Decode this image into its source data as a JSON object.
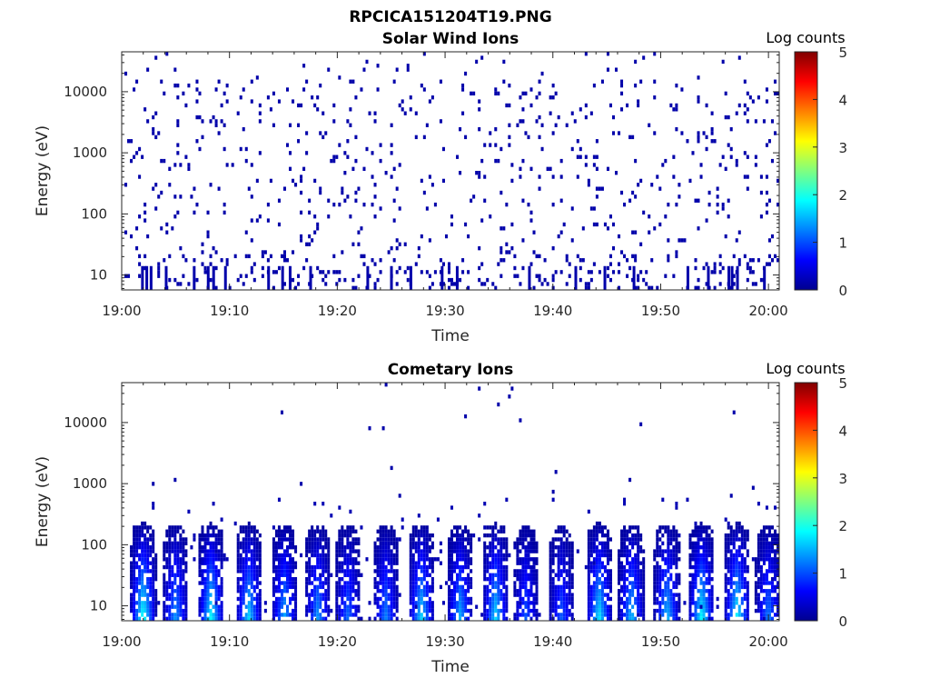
{
  "figure_title": "RPCICA151204T19.PNG",
  "chart_data": [
    {
      "type": "heatmap",
      "title": "Solar Wind Ions",
      "xlabel": "Time",
      "ylabel": "Energy (eV)",
      "x_tick_labels": [
        "19:00",
        "19:10",
        "19:20",
        "19:30",
        "19:40",
        "19:50",
        "20:00"
      ],
      "y_tick_labels": [
        "10",
        "100",
        "1000",
        "10000"
      ],
      "y_scale": "log",
      "ylim_eV": [
        5.7,
        45000
      ],
      "xlim_minutes": [
        0,
        61
      ],
      "colorbar": {
        "label": "Log counts",
        "ticks": [
          "0",
          "1",
          "2",
          "3",
          "4",
          "5"
        ],
        "range": [
          0,
          5
        ],
        "colormap": "jet"
      },
      "description_of_values": "sparse scattered counts mostly log value ~0 (dark blue) across 10 eV to 20 keV",
      "low_energy_bursts_minutes": [
        1.8,
        2.2,
        2.6,
        4.0,
        6.6,
        7.9,
        8.4,
        9.5,
        13.5,
        14.8,
        15.5,
        17.4,
        22.7,
        24.9,
        26.7,
        29.6,
        31.0,
        37.7,
        42.0,
        44.7,
        47.4,
        52.4,
        54.3,
        56.2,
        56.5,
        57.0,
        59.5
      ]
    },
    {
      "type": "heatmap",
      "title": "Cometary Ions",
      "xlabel": "Time",
      "ylabel": "Energy (eV)",
      "x_tick_labels": [
        "19:00",
        "19:10",
        "19:20",
        "19:30",
        "19:40",
        "19:50",
        "20:00"
      ],
      "y_tick_labels": [
        "10",
        "100",
        "1000",
        "10000"
      ],
      "y_scale": "log",
      "ylim_eV": [
        5.7,
        45000
      ],
      "xlim_minutes": [
        0,
        61
      ],
      "colorbar": {
        "label": "Log counts",
        "ticks": [
          "0",
          "1",
          "2",
          "3",
          "4",
          "5"
        ],
        "range": [
          0,
          5
        ],
        "colormap": "jet"
      },
      "description_of_values": "vertical bursts at low energy (8-200 eV) with peak log counts ~1.5-2 near 8-30 eV",
      "bursts": [
        {
          "t": 2.0,
          "peak": 1.9
        },
        {
          "t": 5.0,
          "peak": 1.3
        },
        {
          "t": 8.3,
          "peak": 1.8
        },
        {
          "t": 11.8,
          "peak": 1.6
        },
        {
          "t": 15.1,
          "peak": 1.4
        },
        {
          "t": 18.2,
          "peak": 1.3
        },
        {
          "t": 21.0,
          "peak": 1.1
        },
        {
          "t": 24.5,
          "peak": 1.2
        },
        {
          "t": 27.8,
          "peak": 1.6
        },
        {
          "t": 31.4,
          "peak": 1.4
        },
        {
          "t": 34.7,
          "peak": 1.6
        },
        {
          "t": 37.5,
          "peak": 1.0
        },
        {
          "t": 40.8,
          "peak": 1.0
        },
        {
          "t": 44.3,
          "peak": 1.7
        },
        {
          "t": 47.3,
          "peak": 1.5
        },
        {
          "t": 50.6,
          "peak": 1.5
        },
        {
          "t": 53.8,
          "peak": 1.8
        },
        {
          "t": 57.1,
          "peak": 1.8
        },
        {
          "t": 60.0,
          "peak": 1.2
        }
      ]
    }
  ]
}
